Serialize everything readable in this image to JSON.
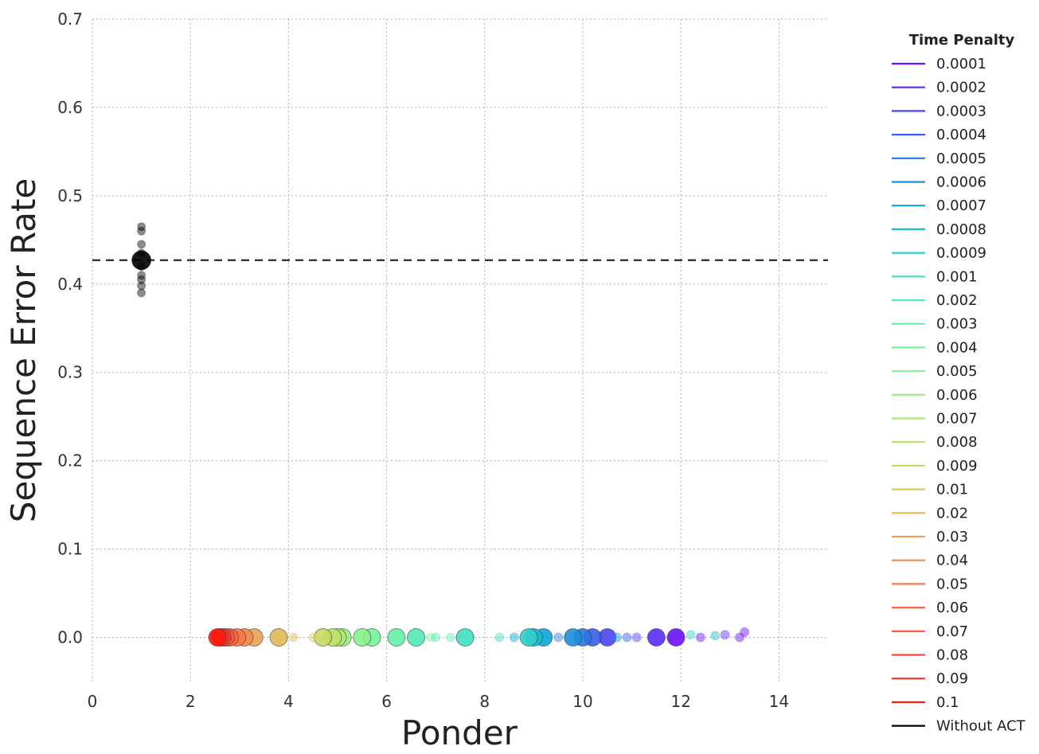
{
  "chart_data": {
    "type": "scatter",
    "title": "",
    "xlabel": "Ponder",
    "ylabel": "Sequence Error Rate",
    "xlim": [
      0,
      15
    ],
    "ylim": [
      -0.05,
      0.7
    ],
    "xticks": [
      0,
      2,
      4,
      6,
      8,
      10,
      12,
      14
    ],
    "yticks": [
      0.0,
      0.1,
      0.2,
      0.3,
      0.4,
      0.5,
      0.6,
      0.7
    ],
    "grid": true,
    "legend_title": "Time Penalty",
    "legend_position": "right",
    "reference_line": {
      "label": "Without ACT",
      "y": 0.427,
      "style": "dashed",
      "color": "#333333"
    },
    "series": [
      {
        "name": "0.0001",
        "color": "#6a11ff",
        "points": [
          {
            "x": 11.9,
            "y": 0.0,
            "size": "large"
          },
          {
            "x": 12.4,
            "y": 0.0,
            "size": "small"
          },
          {
            "x": 13.2,
            "y": 0.0,
            "size": "small"
          },
          {
            "x": 13.3,
            "y": 0.006,
            "size": "small"
          }
        ]
      },
      {
        "name": "0.0002",
        "color": "#5a2cf8",
        "points": [
          {
            "x": 11.5,
            "y": 0.0,
            "size": "large"
          },
          {
            "x": 12.9,
            "y": 0.003,
            "size": "small"
          }
        ]
      },
      {
        "name": "0.0003",
        "color": "#4a44f2",
        "points": [
          {
            "x": 10.5,
            "y": 0.0,
            "size": "large"
          },
          {
            "x": 11.1,
            "y": 0.0,
            "size": "small"
          }
        ]
      },
      {
        "name": "0.0004",
        "color": "#3a5deb",
        "points": [
          {
            "x": 10.2,
            "y": 0.0,
            "size": "large"
          },
          {
            "x": 10.9,
            "y": 0.0,
            "size": "small"
          }
        ]
      },
      {
        "name": "0.0005",
        "color": "#2a75e4",
        "points": [
          {
            "x": 10.0,
            "y": 0.0,
            "size": "large"
          },
          {
            "x": 9.5,
            "y": 0.0,
            "size": "small"
          }
        ]
      },
      {
        "name": "0.0006",
        "color": "#1a8edd",
        "points": [
          {
            "x": 9.8,
            "y": 0.0,
            "size": "large"
          },
          {
            "x": 10.7,
            "y": 0.0,
            "size": "small"
          }
        ]
      },
      {
        "name": "0.0007",
        "color": "#0aa6d6",
        "points": [
          {
            "x": 9.2,
            "y": 0.0,
            "size": "large"
          },
          {
            "x": 8.6,
            "y": 0.0,
            "size": "small"
          }
        ]
      },
      {
        "name": "0.0008",
        "color": "#1cbdd0",
        "points": [
          {
            "x": 9.0,
            "y": 0.0,
            "size": "large"
          },
          {
            "x": 12.7,
            "y": 0.002,
            "size": "small"
          }
        ]
      },
      {
        "name": "0.0009",
        "color": "#2ed0cb",
        "points": [
          {
            "x": 8.9,
            "y": 0.0,
            "size": "large"
          },
          {
            "x": 12.2,
            "y": 0.003,
            "size": "small"
          }
        ]
      },
      {
        "name": "0.001",
        "color": "#40dec2",
        "points": [
          {
            "x": 7.6,
            "y": 0.0,
            "size": "large"
          },
          {
            "x": 8.3,
            "y": 0.0,
            "size": "small"
          }
        ]
      },
      {
        "name": "0.002",
        "color": "#52e8b6",
        "points": [
          {
            "x": 6.6,
            "y": 0.0,
            "size": "large"
          },
          {
            "x": 7.0,
            "y": 0.0,
            "size": "small"
          }
        ]
      },
      {
        "name": "0.003",
        "color": "#64efa8",
        "points": [
          {
            "x": 6.2,
            "y": 0.0,
            "size": "large"
          },
          {
            "x": 7.3,
            "y": 0.0,
            "size": "small"
          }
        ]
      },
      {
        "name": "0.004",
        "color": "#76f29a",
        "points": [
          {
            "x": 5.7,
            "y": 0.0,
            "size": "large"
          },
          {
            "x": 6.9,
            "y": 0.0,
            "size": "small"
          }
        ]
      },
      {
        "name": "0.005",
        "color": "#88f28c",
        "points": [
          {
            "x": 5.5,
            "y": 0.0,
            "size": "large"
          }
        ]
      },
      {
        "name": "0.006",
        "color": "#9aef80",
        "points": [
          {
            "x": 5.1,
            "y": 0.0,
            "size": "large"
          }
        ]
      },
      {
        "name": "0.007",
        "color": "#acea74",
        "points": [
          {
            "x": 5.0,
            "y": 0.0,
            "size": "large"
          }
        ]
      },
      {
        "name": "0.008",
        "color": "#bce36a",
        "points": [
          {
            "x": 4.9,
            "y": 0.0,
            "size": "large"
          }
        ]
      },
      {
        "name": "0.009",
        "color": "#cad862",
        "points": [
          {
            "x": 4.7,
            "y": 0.0,
            "size": "large"
          }
        ]
      },
      {
        "name": "0.01",
        "color": "#d6ca5c",
        "points": [
          {
            "x": 4.5,
            "y": 0.0,
            "size": "small"
          }
        ]
      },
      {
        "name": "0.02",
        "color": "#e0b858",
        "points": [
          {
            "x": 3.8,
            "y": 0.0,
            "size": "large"
          },
          {
            "x": 4.1,
            "y": 0.0,
            "size": "small"
          }
        ]
      },
      {
        "name": "0.03",
        "color": "#eaa254",
        "points": [
          {
            "x": 3.3,
            "y": 0.0,
            "size": "large"
          }
        ]
      },
      {
        "name": "0.04",
        "color": "#f38a4e",
        "points": [
          {
            "x": 3.1,
            "y": 0.0,
            "size": "large"
          }
        ]
      },
      {
        "name": "0.05",
        "color": "#f8784a",
        "points": [
          {
            "x": 2.95,
            "y": 0.0,
            "size": "large"
          }
        ]
      },
      {
        "name": "0.06",
        "color": "#fb6644",
        "points": [
          {
            "x": 2.8,
            "y": 0.0,
            "size": "large"
          }
        ]
      },
      {
        "name": "0.07",
        "color": "#fd553c",
        "points": [
          {
            "x": 2.72,
            "y": 0.0,
            "size": "large"
          }
        ]
      },
      {
        "name": "0.08",
        "color": "#fe4432",
        "points": [
          {
            "x": 2.65,
            "y": 0.0,
            "size": "large"
          }
        ]
      },
      {
        "name": "0.09",
        "color": "#ff3326",
        "points": [
          {
            "x": 2.6,
            "y": 0.0,
            "size": "large"
          }
        ]
      },
      {
        "name": "0.1",
        "color": "#ff1a10",
        "points": [
          {
            "x": 2.55,
            "y": 0.0,
            "size": "large"
          }
        ]
      },
      {
        "name": "Without ACT",
        "color": "#000000",
        "points": [
          {
            "x": 1.0,
            "y": 0.427,
            "size": "large"
          },
          {
            "x": 1.0,
            "y": 0.465,
            "size": "small"
          },
          {
            "x": 1.0,
            "y": 0.46,
            "size": "small"
          },
          {
            "x": 1.0,
            "y": 0.445,
            "size": "small"
          },
          {
            "x": 1.0,
            "y": 0.435,
            "size": "small"
          },
          {
            "x": 1.0,
            "y": 0.42,
            "size": "small"
          },
          {
            "x": 1.0,
            "y": 0.41,
            "size": "small"
          },
          {
            "x": 1.0,
            "y": 0.405,
            "size": "small"
          },
          {
            "x": 1.0,
            "y": 0.398,
            "size": "small"
          },
          {
            "x": 1.0,
            "y": 0.39,
            "size": "small"
          }
        ]
      }
    ]
  }
}
